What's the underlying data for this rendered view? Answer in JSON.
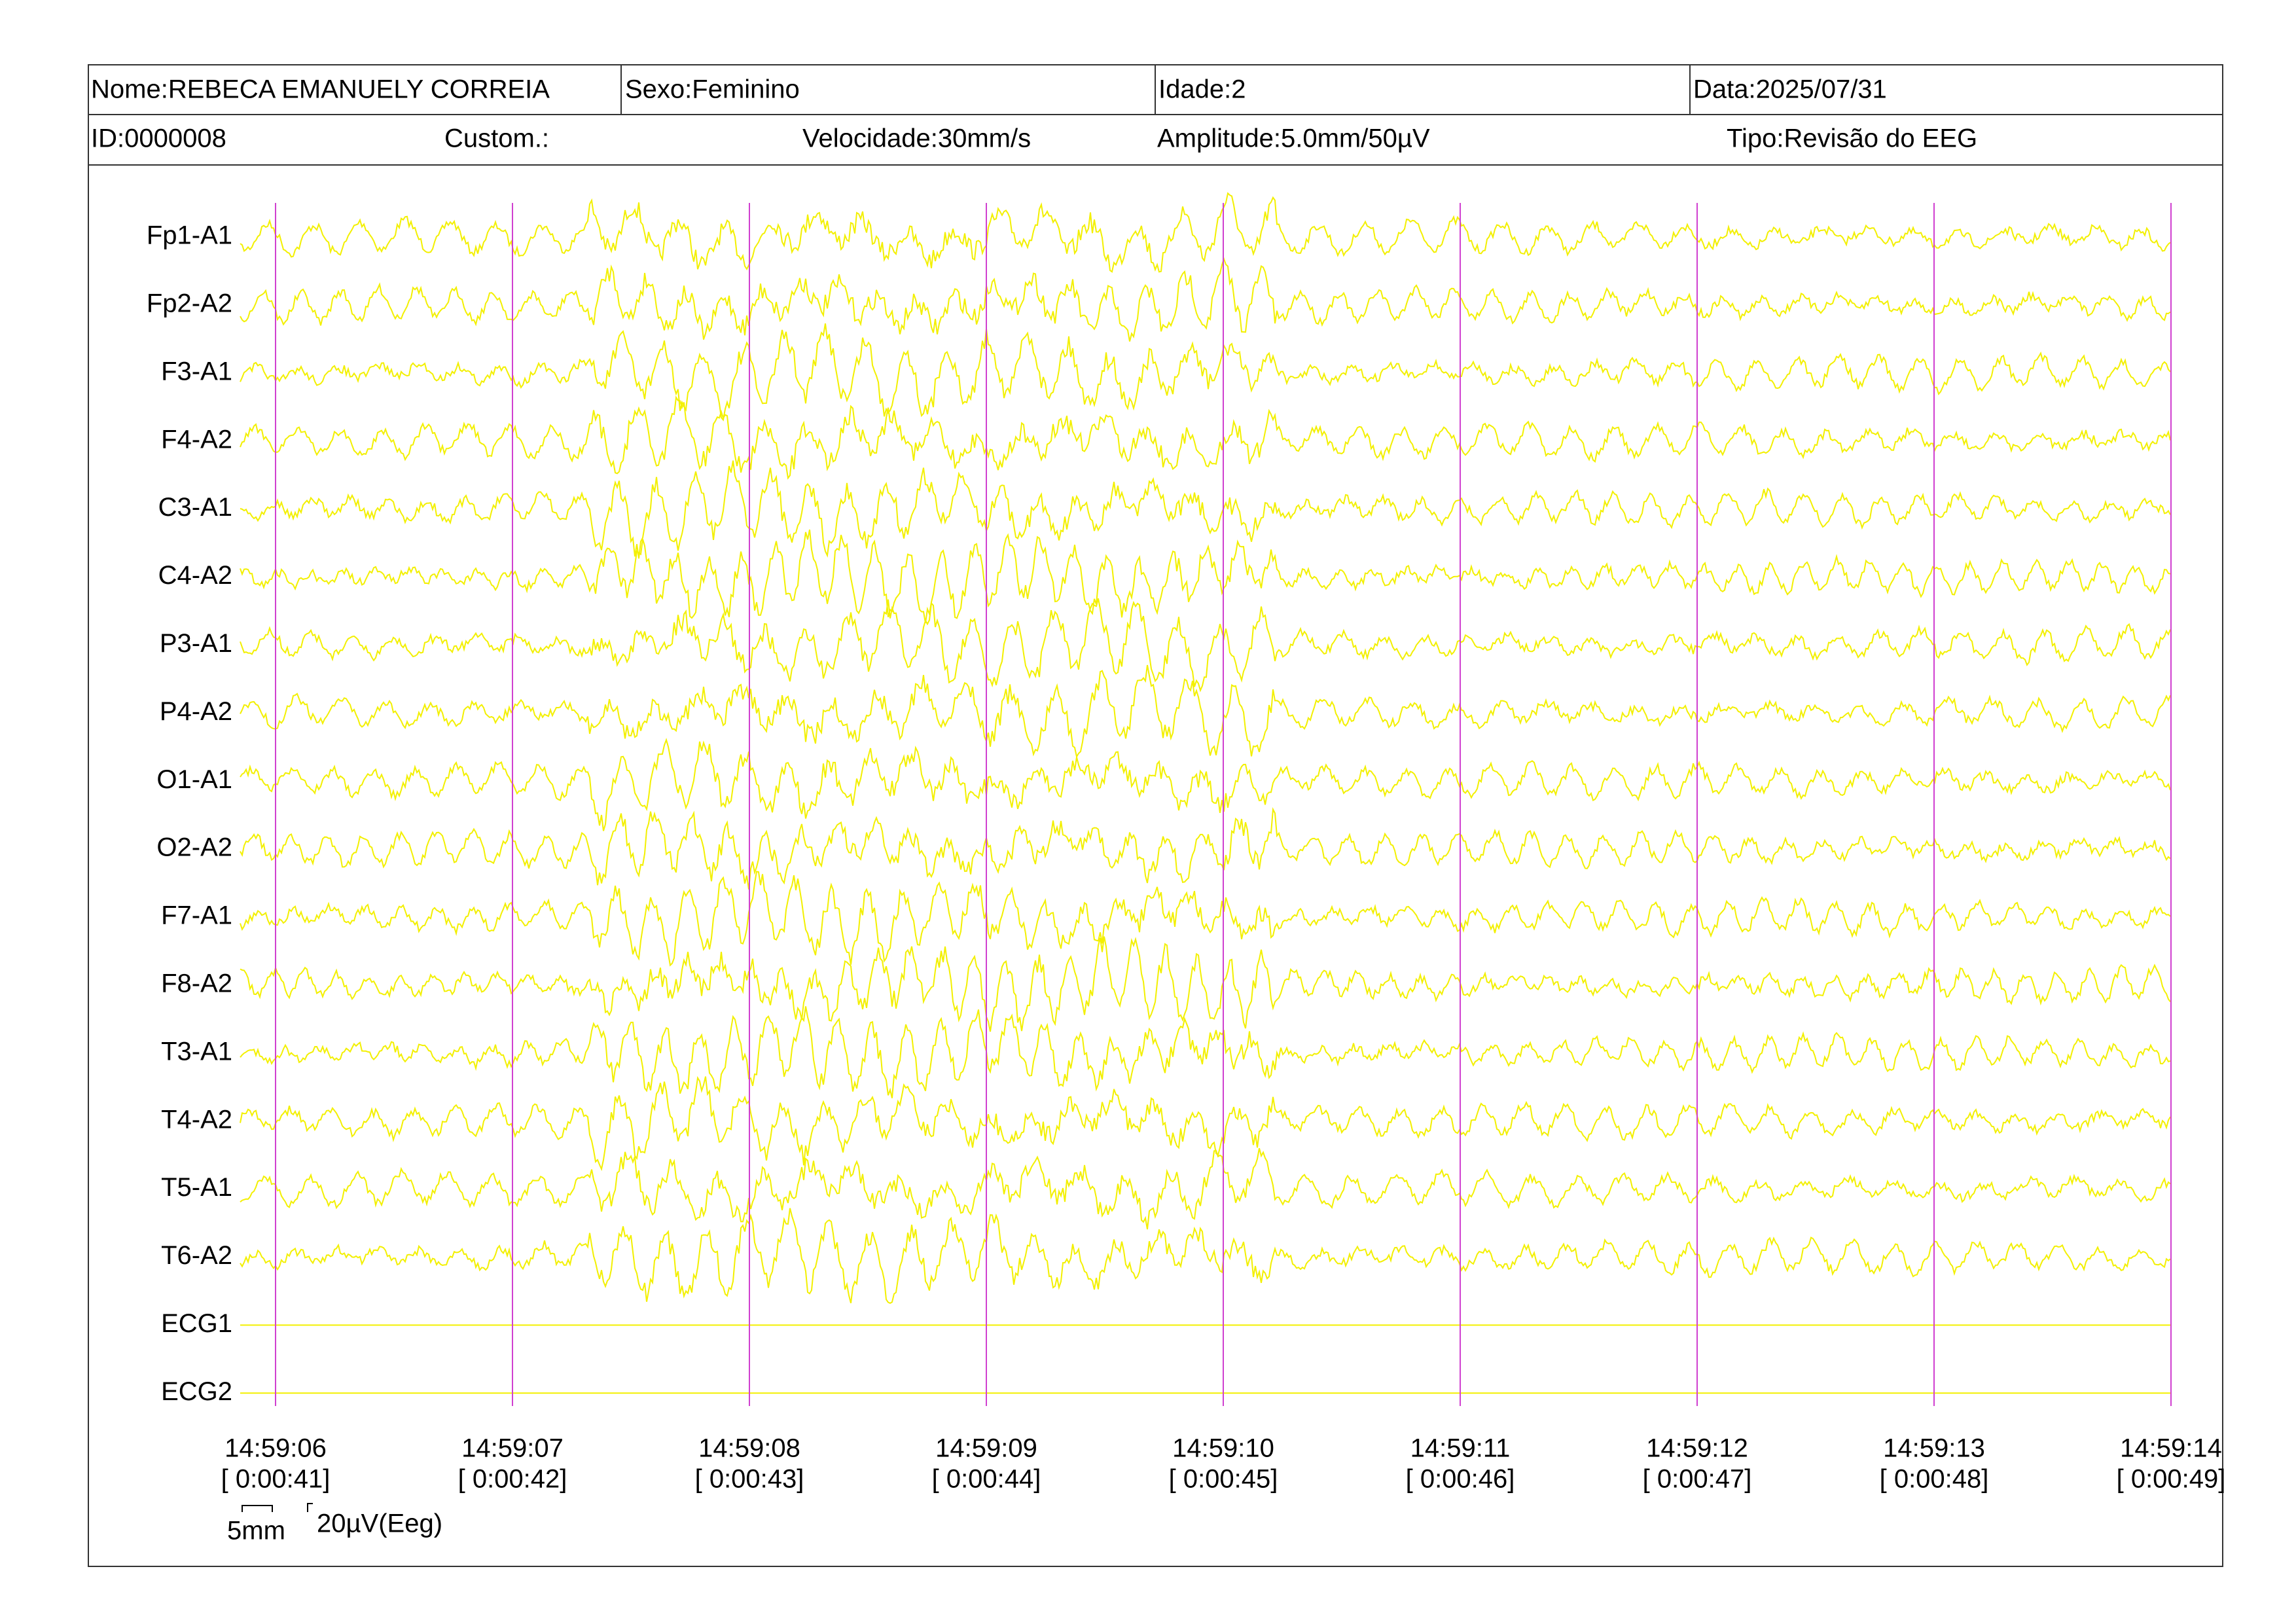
{
  "header": {
    "name": "Nome:REBECA EMANUELY CORREIA",
    "sex": "Sexo:Feminino",
    "age": "Idade:2",
    "date": "Data:2025/07/31",
    "id": "ID:0000008",
    "custom": "Custom.:",
    "speed": "Velocidade:30mm/s",
    "amplitude": "Amplitude:5.0mm/50µV",
    "exam_type": "Tipo:Revisão do EEG"
  },
  "channels": [
    "Fp1-A1",
    "Fp2-A2",
    "F3-A1",
    "F4-A2",
    "C3-A1",
    "C4-A2",
    "P3-A1",
    "P4-A2",
    "O1-A1",
    "O2-A2",
    "F7-A1",
    "F8-A2",
    "T3-A1",
    "T4-A2",
    "T5-A1",
    "T6-A2",
    "ECG1",
    "ECG2"
  ],
  "time_marks": [
    {
      "time": "14:59:06",
      "elapsed": "[ 0:00:41]"
    },
    {
      "time": "14:59:07",
      "elapsed": "[ 0:00:42]"
    },
    {
      "time": "14:59:08",
      "elapsed": "[ 0:00:43]"
    },
    {
      "time": "14:59:09",
      "elapsed": "[ 0:00:44]"
    },
    {
      "time": "14:59:10",
      "elapsed": "[ 0:00:45]"
    },
    {
      "time": "14:59:11",
      "elapsed": "[ 0:00:46]"
    },
    {
      "time": "14:59:12",
      "elapsed": "[ 0:00:47]"
    },
    {
      "time": "14:59:13",
      "elapsed": "[ 0:00:48]"
    },
    {
      "time": "14:59:14",
      "elapsed": "[ 0:00:49]"
    }
  ],
  "scale": {
    "width": "5mm",
    "amplitude": "20µV(Eeg)"
  }
}
